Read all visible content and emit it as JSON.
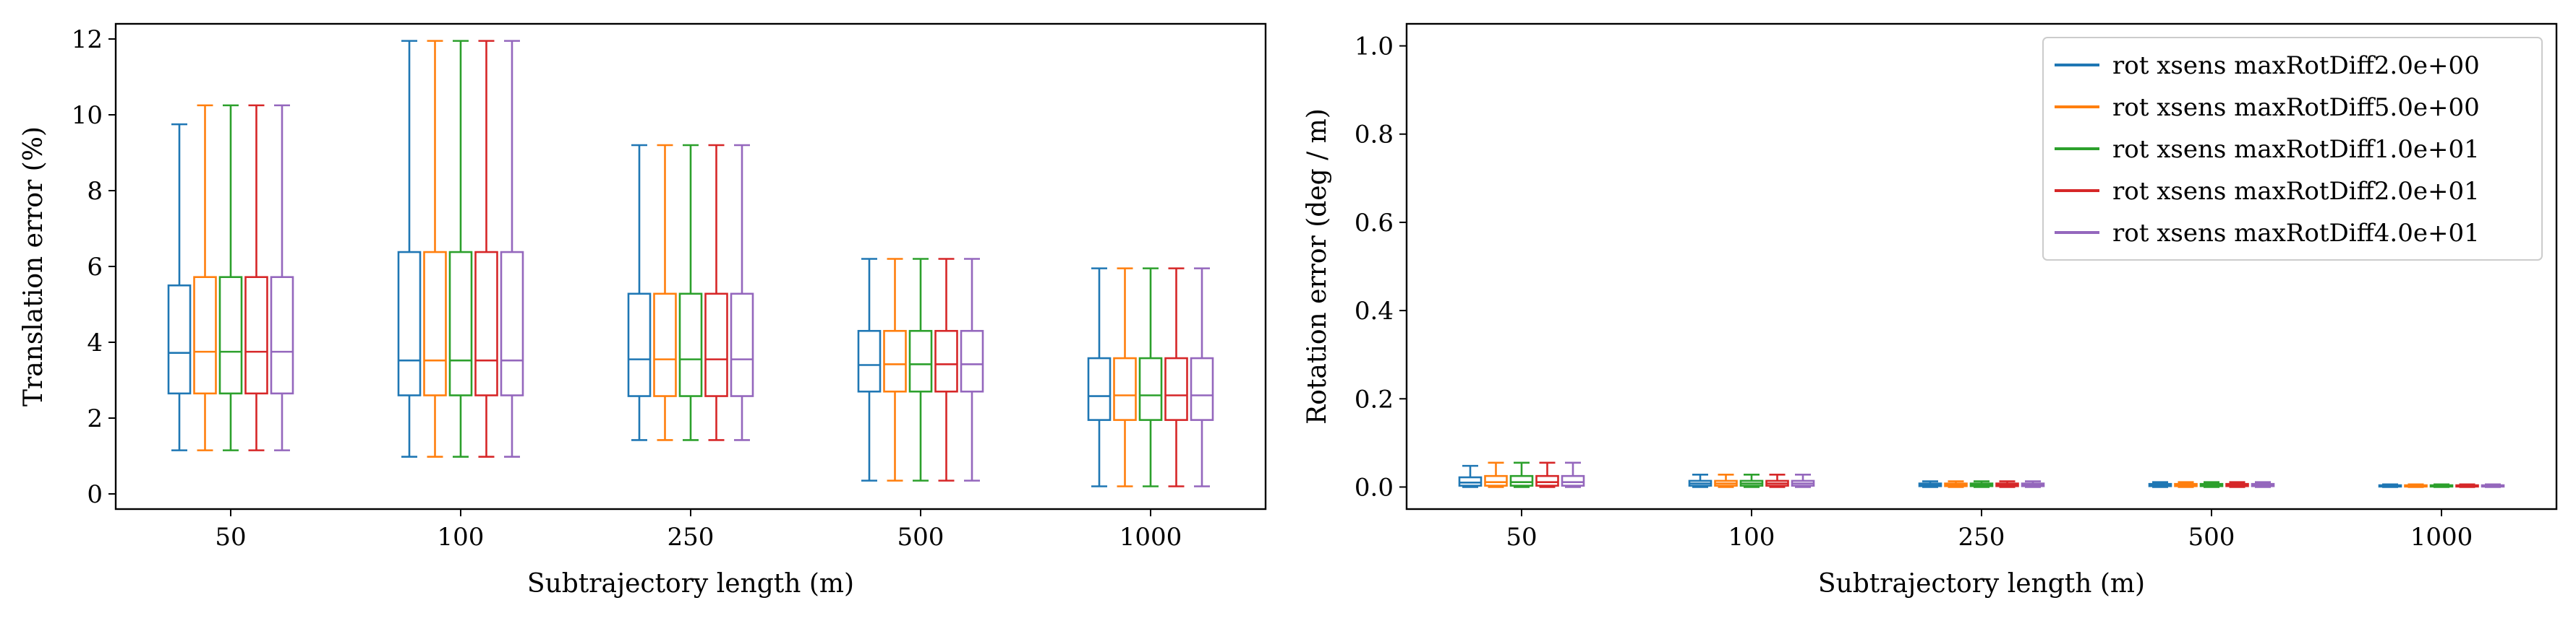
{
  "chart_data": [
    {
      "type": "box",
      "xlabel": "Subtrajectory length (m)",
      "ylabel": "Translation error (%)",
      "ylim": [
        -0.4,
        12.4
      ],
      "yticks": [
        "0",
        "2",
        "4",
        "6",
        "8",
        "10",
        "12"
      ],
      "categories": [
        "50",
        "100",
        "250",
        "500",
        "1000"
      ],
      "series": [
        {
          "color": "#1f77b4",
          "boxes": [
            {
              "whislo": 1.15,
              "q1": 2.65,
              "med": 3.72,
              "q3": 5.5,
              "whishi": 9.75
            },
            {
              "whislo": 0.98,
              "q1": 2.6,
              "med": 3.52,
              "q3": 6.38,
              "whishi": 11.95
            },
            {
              "whislo": 1.42,
              "q1": 2.58,
              "med": 3.55,
              "q3": 5.28,
              "whishi": 9.2
            },
            {
              "whislo": 0.35,
              "q1": 2.7,
              "med": 3.4,
              "q3": 4.3,
              "whishi": 6.2
            },
            {
              "whislo": 0.2,
              "q1": 1.95,
              "med": 2.58,
              "q3": 3.58,
              "whishi": 5.95
            }
          ]
        },
        {
          "color": "#ff7f0e",
          "boxes": [
            {
              "whislo": 1.15,
              "q1": 2.65,
              "med": 3.75,
              "q3": 5.72,
              "whishi": 10.25
            },
            {
              "whislo": 0.98,
              "q1": 2.6,
              "med": 3.52,
              "q3": 6.38,
              "whishi": 11.95
            },
            {
              "whislo": 1.42,
              "q1": 2.58,
              "med": 3.55,
              "q3": 5.28,
              "whishi": 9.2
            },
            {
              "whislo": 0.35,
              "q1": 2.7,
              "med": 3.42,
              "q3": 4.3,
              "whishi": 6.2
            },
            {
              "whislo": 0.2,
              "q1": 1.95,
              "med": 2.6,
              "q3": 3.58,
              "whishi": 5.95
            }
          ]
        },
        {
          "color": "#2ca02c",
          "boxes": [
            {
              "whislo": 1.15,
              "q1": 2.65,
              "med": 3.75,
              "q3": 5.72,
              "whishi": 10.25
            },
            {
              "whislo": 0.98,
              "q1": 2.6,
              "med": 3.52,
              "q3": 6.38,
              "whishi": 11.95
            },
            {
              "whislo": 1.42,
              "q1": 2.58,
              "med": 3.55,
              "q3": 5.28,
              "whishi": 9.2
            },
            {
              "whislo": 0.35,
              "q1": 2.7,
              "med": 3.42,
              "q3": 4.3,
              "whishi": 6.2
            },
            {
              "whislo": 0.2,
              "q1": 1.95,
              "med": 2.6,
              "q3": 3.58,
              "whishi": 5.95
            }
          ]
        },
        {
          "color": "#d62728",
          "boxes": [
            {
              "whislo": 1.15,
              "q1": 2.65,
              "med": 3.75,
              "q3": 5.72,
              "whishi": 10.25
            },
            {
              "whislo": 0.98,
              "q1": 2.6,
              "med": 3.52,
              "q3": 6.38,
              "whishi": 11.95
            },
            {
              "whislo": 1.42,
              "q1": 2.58,
              "med": 3.55,
              "q3": 5.28,
              "whishi": 9.2
            },
            {
              "whislo": 0.35,
              "q1": 2.7,
              "med": 3.42,
              "q3": 4.3,
              "whishi": 6.2
            },
            {
              "whislo": 0.2,
              "q1": 1.95,
              "med": 2.6,
              "q3": 3.58,
              "whishi": 5.95
            }
          ]
        },
        {
          "color": "#9467bd",
          "boxes": [
            {
              "whislo": 1.15,
              "q1": 2.65,
              "med": 3.75,
              "q3": 5.72,
              "whishi": 10.25
            },
            {
              "whislo": 0.98,
              "q1": 2.6,
              "med": 3.52,
              "q3": 6.38,
              "whishi": 11.95
            },
            {
              "whislo": 1.42,
              "q1": 2.58,
              "med": 3.55,
              "q3": 5.28,
              "whishi": 9.2
            },
            {
              "whislo": 0.35,
              "q1": 2.7,
              "med": 3.42,
              "q3": 4.3,
              "whishi": 6.2
            },
            {
              "whislo": 0.2,
              "q1": 1.95,
              "med": 2.6,
              "q3": 3.58,
              "whishi": 5.95
            }
          ]
        }
      ]
    },
    {
      "type": "box",
      "xlabel": "Subtrajectory length (m)",
      "ylabel": "Rotation error (deg / m)",
      "ylim": [
        -0.05,
        1.05
      ],
      "yticks": [
        "0.0",
        "0.2",
        "0.4",
        "0.6",
        "0.8",
        "1.0"
      ],
      "categories": [
        "50",
        "100",
        "250",
        "500",
        "1000"
      ],
      "legend": {
        "position": "top-right",
        "entries": [
          {
            "label": "rot xsens maxRotDiff2.0e+00",
            "color": "#1f77b4"
          },
          {
            "label": "rot xsens maxRotDiff5.0e+00",
            "color": "#ff7f0e"
          },
          {
            "label": "rot xsens maxRotDiff1.0e+01",
            "color": "#2ca02c"
          },
          {
            "label": "rot xsens maxRotDiff2.0e+01",
            "color": "#d62728"
          },
          {
            "label": "rot xsens maxRotDiff4.0e+01",
            "color": "#9467bd"
          }
        ]
      },
      "series": [
        {
          "color": "#1f77b4",
          "boxes": [
            {
              "whislo": 0.0,
              "q1": 0.003,
              "med": 0.01,
              "q3": 0.022,
              "whishi": 0.048
            },
            {
              "whislo": 0.0,
              "q1": 0.003,
              "med": 0.008,
              "q3": 0.014,
              "whishi": 0.028
            },
            {
              "whislo": 0.0,
              "q1": 0.002,
              "med": 0.005,
              "q3": 0.008,
              "whishi": 0.013
            },
            {
              "whislo": 0.0,
              "q1": 0.002,
              "med": 0.005,
              "q3": 0.007,
              "whishi": 0.011
            },
            {
              "whislo": 0.0,
              "q1": 0.001,
              "med": 0.003,
              "q3": 0.004,
              "whishi": 0.006
            }
          ]
        },
        {
          "color": "#ff7f0e",
          "boxes": [
            {
              "whislo": 0.0,
              "q1": 0.003,
              "med": 0.011,
              "q3": 0.025,
              "whishi": 0.055
            },
            {
              "whislo": 0.0,
              "q1": 0.003,
              "med": 0.008,
              "q3": 0.014,
              "whishi": 0.028
            },
            {
              "whislo": 0.0,
              "q1": 0.002,
              "med": 0.005,
              "q3": 0.008,
              "whishi": 0.013
            },
            {
              "whislo": 0.0,
              "q1": 0.002,
              "med": 0.005,
              "q3": 0.007,
              "whishi": 0.011
            },
            {
              "whislo": 0.0,
              "q1": 0.001,
              "med": 0.003,
              "q3": 0.004,
              "whishi": 0.006
            }
          ]
        },
        {
          "color": "#2ca02c",
          "boxes": [
            {
              "whislo": 0.0,
              "q1": 0.003,
              "med": 0.011,
              "q3": 0.025,
              "whishi": 0.055
            },
            {
              "whislo": 0.0,
              "q1": 0.003,
              "med": 0.008,
              "q3": 0.014,
              "whishi": 0.028
            },
            {
              "whislo": 0.0,
              "q1": 0.002,
              "med": 0.005,
              "q3": 0.008,
              "whishi": 0.013
            },
            {
              "whislo": 0.0,
              "q1": 0.002,
              "med": 0.005,
              "q3": 0.007,
              "whishi": 0.011
            },
            {
              "whislo": 0.0,
              "q1": 0.001,
              "med": 0.003,
              "q3": 0.004,
              "whishi": 0.006
            }
          ]
        },
        {
          "color": "#d62728",
          "boxes": [
            {
              "whislo": 0.0,
              "q1": 0.003,
              "med": 0.011,
              "q3": 0.025,
              "whishi": 0.055
            },
            {
              "whislo": 0.0,
              "q1": 0.003,
              "med": 0.008,
              "q3": 0.014,
              "whishi": 0.028
            },
            {
              "whislo": 0.0,
              "q1": 0.002,
              "med": 0.005,
              "q3": 0.008,
              "whishi": 0.013
            },
            {
              "whislo": 0.0,
              "q1": 0.002,
              "med": 0.005,
              "q3": 0.007,
              "whishi": 0.011
            },
            {
              "whislo": 0.0,
              "q1": 0.001,
              "med": 0.003,
              "q3": 0.004,
              "whishi": 0.006
            }
          ]
        },
        {
          "color": "#9467bd",
          "boxes": [
            {
              "whislo": 0.0,
              "q1": 0.003,
              "med": 0.011,
              "q3": 0.025,
              "whishi": 0.055
            },
            {
              "whislo": 0.0,
              "q1": 0.003,
              "med": 0.008,
              "q3": 0.014,
              "whishi": 0.028
            },
            {
              "whislo": 0.0,
              "q1": 0.002,
              "med": 0.005,
              "q3": 0.008,
              "whishi": 0.013
            },
            {
              "whislo": 0.0,
              "q1": 0.002,
              "med": 0.005,
              "q3": 0.007,
              "whishi": 0.011
            },
            {
              "whislo": 0.0,
              "q1": 0.001,
              "med": 0.003,
              "q3": 0.004,
              "whishi": 0.006
            }
          ]
        }
      ]
    }
  ]
}
